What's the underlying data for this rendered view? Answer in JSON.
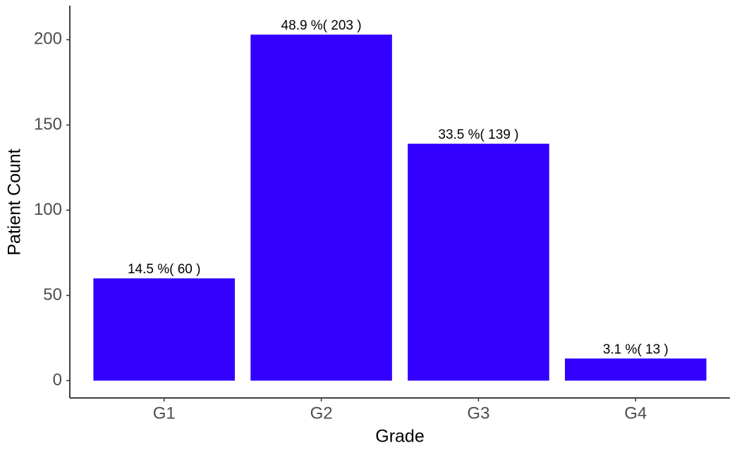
{
  "chart_data": {
    "type": "bar",
    "x_label": "Grade",
    "y_label": "Patient Count",
    "categories": [
      "G1",
      "G2",
      "G3",
      "G4"
    ],
    "values": [
      60,
      203,
      139,
      13
    ],
    "value_labels": [
      "14.5 %( 60 )",
      "48.9 %( 203 )",
      "33.5 %( 139 )",
      "3.1 %( 13 )"
    ],
    "color": "#3300ff",
    "ylim": [
      -10.15,
      220
    ],
    "yticks": [
      0,
      50,
      100,
      150,
      200
    ],
    "grid": false
  }
}
